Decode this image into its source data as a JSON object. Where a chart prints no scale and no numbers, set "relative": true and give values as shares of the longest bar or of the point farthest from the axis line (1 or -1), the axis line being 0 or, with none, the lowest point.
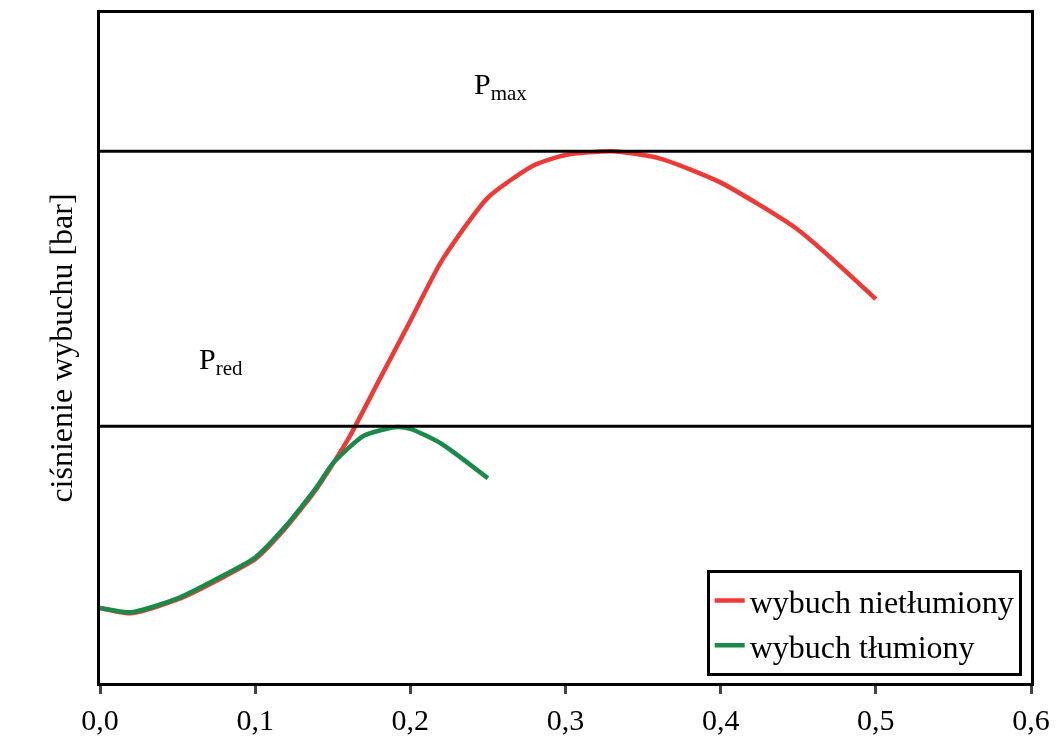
{
  "chart_data": {
    "type": "line",
    "ylabel": "ciśnienie wybuchu [bar]",
    "relative": true,
    "xlim": [
      0,
      0.6
    ],
    "xticks": [
      {
        "value": 0,
        "label": "0,0"
      },
      {
        "value": 0.1,
        "label": "0,1"
      },
      {
        "value": 0.2,
        "label": "0,2"
      },
      {
        "value": 0.3,
        "label": "0,3"
      },
      {
        "value": 0.4,
        "label": "0,4"
      },
      {
        "value": 0.5,
        "label": "0,5"
      },
      {
        "value": 0.6,
        "label": "0,6"
      }
    ],
    "series": [
      {
        "name": "wybuch nietłumiony",
        "color": "#ee3a36",
        "x": [
          0,
          0.02,
          0.05,
          0.08,
          0.1,
          0.12,
          0.14,
          0.16,
          0.18,
          0.2,
          0.22,
          0.25,
          0.28,
          0.3,
          0.33,
          0.36,
          0.4,
          0.45,
          0.5
        ],
        "values": [
          0.141,
          0.131,
          0.157,
          0.2,
          0.233,
          0.293,
          0.367,
          0.459,
          0.57,
          0.681,
          0.793,
          0.913,
          0.974,
          0.993,
          1.0,
          0.987,
          0.941,
          0.852,
          0.722
        ]
      },
      {
        "name": "wybuch tłumiony",
        "color": "#1a8a4a",
        "x": [
          0,
          0.02,
          0.05,
          0.08,
          0.1,
          0.12,
          0.14,
          0.15,
          0.17,
          0.19,
          0.2,
          0.22,
          0.25
        ],
        "values": [
          0.141,
          0.133,
          0.159,
          0.203,
          0.236,
          0.296,
          0.37,
          0.413,
          0.465,
          0.481,
          0.478,
          0.45,
          0.385
        ]
      }
    ],
    "ref_lines": [
      {
        "axis": "y",
        "value": 1.0,
        "label": "P$_{max}$",
        "color": "#000000"
      },
      {
        "axis": "y",
        "value": 0.483,
        "label": "P$_{red}$",
        "color": "#000000"
      }
    ],
    "legend": "bottom right",
    "line_style": "solid",
    "marker": "none"
  }
}
